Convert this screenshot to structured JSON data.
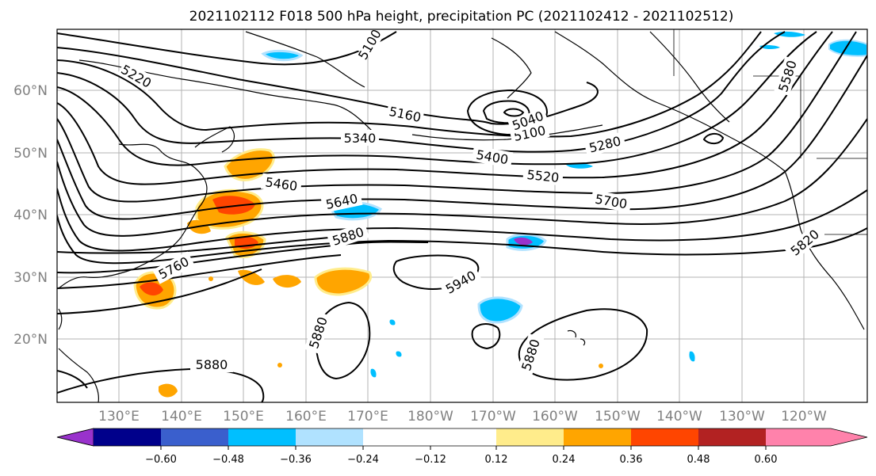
{
  "title": "2021102112 F018 500 hPa height, precipitation PC (2021102412 - 2021102512)",
  "map": {
    "lat_labels": [
      "60°N",
      "50°N",
      "40°N",
      "30°N",
      "20°N"
    ],
    "lon_labels": [
      "130°E",
      "140°E",
      "150°E",
      "160°E",
      "170°E",
      "180°W",
      "170°W",
      "160°W",
      "150°W",
      "140°W",
      "130°W",
      "120°W"
    ],
    "contour_labels": [
      "5100",
      "5220",
      "5160",
      "5340",
      "5400",
      "5100",
      "5280",
      "5580",
      "5460",
      "5520",
      "5640",
      "5700",
      "5880",
      "5760",
      "5940",
      "5820",
      "5880",
      "5880",
      "5880",
      "5040"
    ]
  },
  "colorbar": {
    "colors": [
      "#9932cc",
      "#00008b",
      "#3a5fcd",
      "#00bfff",
      "#b0e2ff",
      "#ffffff",
      "#ffec8b",
      "#ffa500",
      "#ff4500",
      "#b22222",
      "#ff82ab"
    ],
    "tick_labels": [
      "−0.60",
      "−0.48",
      "−0.36",
      "−0.24",
      "−0.12",
      "0.12",
      "0.24",
      "0.36",
      "0.48",
      "0.60"
    ]
  }
}
